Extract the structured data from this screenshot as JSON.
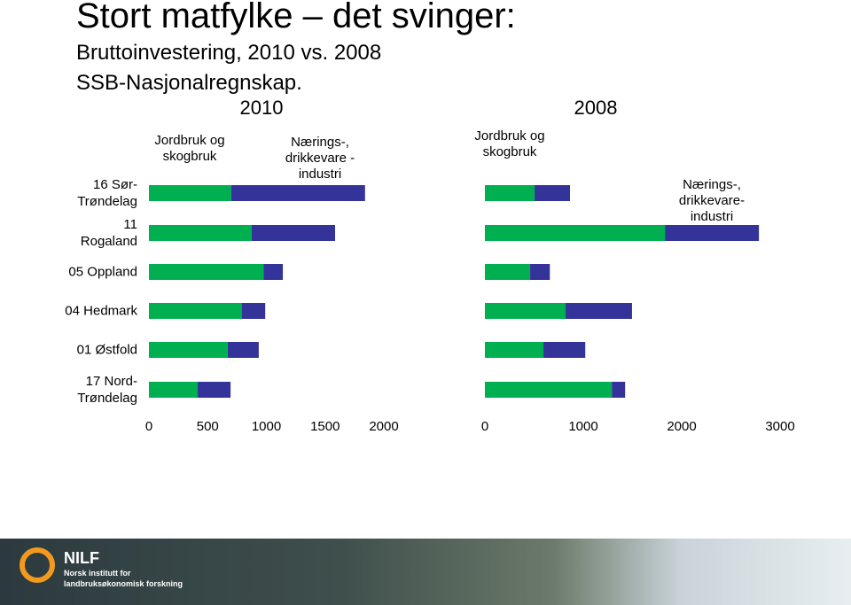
{
  "header": {
    "title": "Stort matfylke – det svinger:",
    "subtitle": "Bruttoinvestering, 2010 vs. 2008",
    "source": "SSB-Nasjonalregnskap."
  },
  "chart_data": [
    {
      "type": "bar",
      "orientation": "horizontal",
      "stacked": true,
      "title": "2010",
      "categories": [
        "16 Sør-Trøndelag",
        "11 Rogaland",
        "05 Oppland",
        "04 Hedmark",
        "01 Østfold",
        "17 Nord-Trøndelag"
      ],
      "series": [
        {
          "name": "Jordbruk og skogbruk",
          "color": "#00b050",
          "values": [
            700,
            875,
            975,
            790,
            670,
            415
          ]
        },
        {
          "name": "Nærings-, drikkevare -industri",
          "color": "#333399",
          "values": [
            1140,
            710,
            165,
            200,
            265,
            280
          ]
        }
      ],
      "xlim": [
        0,
        2000
      ],
      "xticks": [
        0,
        500,
        1000,
        1500,
        2000
      ]
    },
    {
      "type": "bar",
      "orientation": "horizontal",
      "stacked": true,
      "title": "2008",
      "categories": [
        "16 Sør-Trøndelag",
        "11 Rogaland",
        "05 Oppland",
        "04 Hedmark",
        "01 Østfold",
        "17 Nord-Trøndelag"
      ],
      "series": [
        {
          "name": "Jordbruk og skogbruk",
          "color": "#00b050",
          "values": [
            505,
            1830,
            460,
            820,
            595,
            1290
          ]
        },
        {
          "name": "Nærings-, drikkevare-industri",
          "color": "#333399",
          "values": [
            360,
            955,
            200,
            675,
            425,
            135
          ]
        }
      ],
      "xlim": [
        0,
        3000
      ],
      "xticks": [
        0,
        1000,
        2000,
        3000
      ]
    }
  ],
  "footer": {
    "logo": "NILF",
    "line1": "Norsk institutt for",
    "line2": "landbruksøkonomisk forskning"
  }
}
